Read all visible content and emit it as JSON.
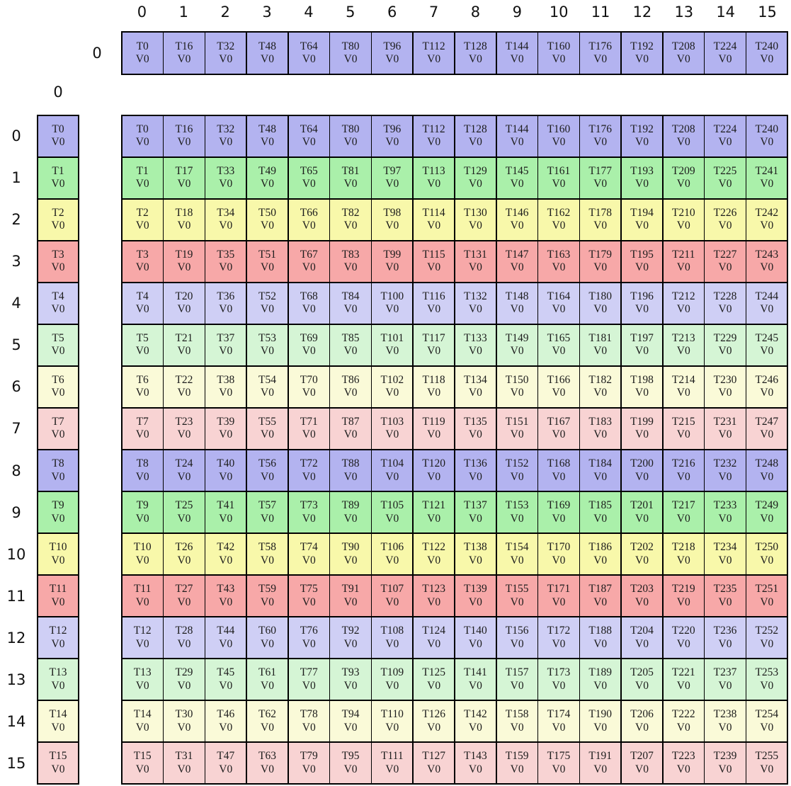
{
  "palette": {
    "blue": "#b3b3f0",
    "green": "#aaf0aa",
    "yellow": "#f8f8aa",
    "red": "#f7a8a8",
    "blueLight": "#cfcff5",
    "greenLight": "#d5f5d5",
    "yellowLight": "#fafad8",
    "redLight": "#f8d3d3",
    "border": "#000000",
    "cell_text": "#1c1c1c",
    "label_text": "#111111",
    "background": "#ffffff"
  },
  "column_headers": [
    "0",
    "1",
    "2",
    "3",
    "4",
    "5",
    "6",
    "7",
    "8",
    "9",
    "10",
    "11",
    "12",
    "13",
    "14",
    "15"
  ],
  "row_headers": [
    "0",
    "1",
    "2",
    "3",
    "4",
    "5",
    "6",
    "7",
    "8",
    "9",
    "10",
    "11",
    "12",
    "13",
    "14",
    "15"
  ],
  "cell_line2": "V0",
  "top_matrix": {
    "row_label": "0",
    "color": "blue",
    "cells": [
      "T0",
      "T16",
      "T32",
      "T48",
      "T64",
      "T80",
      "T96",
      "T112",
      "T128",
      "T144",
      "T160",
      "T176",
      "T192",
      "T208",
      "T224",
      "T240"
    ]
  },
  "left_matrix": {
    "col_label": "0",
    "colors": [
      "blue",
      "green",
      "yellow",
      "red",
      "blueLight",
      "greenLight",
      "yellowLight",
      "redLight",
      "blue",
      "green",
      "yellow",
      "red",
      "blueLight",
      "greenLight",
      "yellowLight",
      "redLight"
    ],
    "cells": [
      "T0",
      "T1",
      "T2",
      "T3",
      "T4",
      "T5",
      "T6",
      "T7",
      "T8",
      "T9",
      "T10",
      "T11",
      "T12",
      "T13",
      "T14",
      "T15"
    ]
  },
  "main_matrix": {
    "rows": [
      {
        "color": "blue",
        "cells": [
          "T0",
          "T16",
          "T32",
          "T48",
          "T64",
          "T80",
          "T96",
          "T112",
          "T128",
          "T144",
          "T160",
          "T176",
          "T192",
          "T208",
          "T224",
          "T240"
        ]
      },
      {
        "color": "green",
        "cells": [
          "T1",
          "T17",
          "T33",
          "T49",
          "T65",
          "T81",
          "T97",
          "T113",
          "T129",
          "T145",
          "T161",
          "T177",
          "T193",
          "T209",
          "T225",
          "T241"
        ]
      },
      {
        "color": "yellow",
        "cells": [
          "T2",
          "T18",
          "T34",
          "T50",
          "T66",
          "T82",
          "T98",
          "T114",
          "T130",
          "T146",
          "T162",
          "T178",
          "T194",
          "T210",
          "T226",
          "T242"
        ]
      },
      {
        "color": "red",
        "cells": [
          "T3",
          "T19",
          "T35",
          "T51",
          "T67",
          "T83",
          "T99",
          "T115",
          "T131",
          "T147",
          "T163",
          "T179",
          "T195",
          "T211",
          "T227",
          "T243"
        ]
      },
      {
        "color": "blueLight",
        "cells": [
          "T4",
          "T20",
          "T36",
          "T52",
          "T68",
          "T84",
          "T100",
          "T116",
          "T132",
          "T148",
          "T164",
          "T180",
          "T196",
          "T212",
          "T228",
          "T244"
        ]
      },
      {
        "color": "greenLight",
        "cells": [
          "T5",
          "T21",
          "T37",
          "T53",
          "T69",
          "T85",
          "T101",
          "T117",
          "T133",
          "T149",
          "T165",
          "T181",
          "T197",
          "T213",
          "T229",
          "T245"
        ]
      },
      {
        "color": "yellowLight",
        "cells": [
          "T6",
          "T22",
          "T38",
          "T54",
          "T70",
          "T86",
          "T102",
          "T118",
          "T134",
          "T150",
          "T166",
          "T182",
          "T198",
          "T214",
          "T230",
          "T246"
        ]
      },
      {
        "color": "redLight",
        "cells": [
          "T7",
          "T23",
          "T39",
          "T55",
          "T71",
          "T87",
          "T103",
          "T119",
          "T135",
          "T151",
          "T167",
          "T183",
          "T199",
          "T215",
          "T231",
          "T247"
        ]
      },
      {
        "color": "blue",
        "cells": [
          "T8",
          "T24",
          "T40",
          "T56",
          "T72",
          "T88",
          "T104",
          "T120",
          "T136",
          "T152",
          "T168",
          "T184",
          "T200",
          "T216",
          "T232",
          "T248"
        ]
      },
      {
        "color": "green",
        "cells": [
          "T9",
          "T25",
          "T41",
          "T57",
          "T73",
          "T89",
          "T105",
          "T121",
          "T137",
          "T153",
          "T169",
          "T185",
          "T201",
          "T217",
          "T233",
          "T249"
        ]
      },
      {
        "color": "yellow",
        "cells": [
          "T10",
          "T26",
          "T42",
          "T58",
          "T74",
          "T90",
          "T106",
          "T122",
          "T138",
          "T154",
          "T170",
          "T186",
          "T202",
          "T218",
          "T234",
          "T250"
        ]
      },
      {
        "color": "red",
        "cells": [
          "T11",
          "T27",
          "T43",
          "T59",
          "T75",
          "T91",
          "T107",
          "T123",
          "T139",
          "T155",
          "T171",
          "T187",
          "T203",
          "T219",
          "T235",
          "T251"
        ]
      },
      {
        "color": "blueLight",
        "cells": [
          "T12",
          "T28",
          "T44",
          "T60",
          "T76",
          "T92",
          "T108",
          "T124",
          "T140",
          "T156",
          "T172",
          "T188",
          "T204",
          "T220",
          "T236",
          "T252"
        ]
      },
      {
        "color": "greenLight",
        "cells": [
          "T13",
          "T29",
          "T45",
          "T61",
          "T77",
          "T93",
          "T109",
          "T125",
          "T141",
          "T157",
          "T173",
          "T189",
          "T205",
          "T221",
          "T237",
          "T253"
        ]
      },
      {
        "color": "yellowLight",
        "cells": [
          "T14",
          "T30",
          "T46",
          "T62",
          "T78",
          "T94",
          "T110",
          "T126",
          "T142",
          "T158",
          "T174",
          "T190",
          "T206",
          "T222",
          "T238",
          "T254"
        ]
      },
      {
        "color": "redLight",
        "cells": [
          "T15",
          "T31",
          "T47",
          "T63",
          "T79",
          "T95",
          "T111",
          "T127",
          "T143",
          "T159",
          "T175",
          "T191",
          "T207",
          "T223",
          "T239",
          "T255"
        ]
      }
    ]
  }
}
